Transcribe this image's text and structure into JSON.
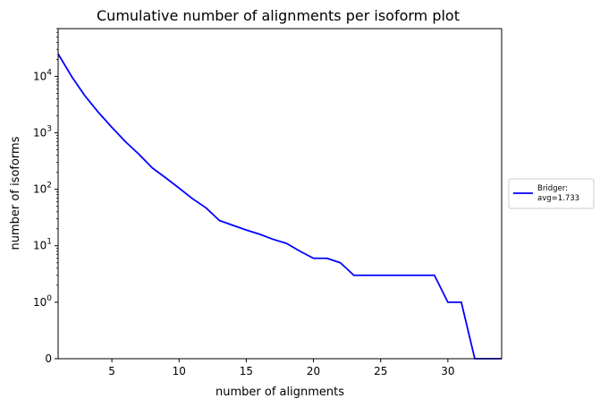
{
  "chart_data": {
    "type": "line",
    "title": "Cumulative number of alignments per isoform plot",
    "xlabel": "number of alignments",
    "ylabel": "number of isoforms",
    "yscale": "symlog",
    "xlim": [
      1,
      34
    ],
    "ylim": [
      0,
      70000
    ],
    "grid": false,
    "legend_position": "outside-right",
    "x_ticks": [
      {
        "value": 5,
        "label": "5"
      },
      {
        "value": 10,
        "label": "10"
      },
      {
        "value": 15,
        "label": "15"
      },
      {
        "value": 20,
        "label": "20"
      },
      {
        "value": 25,
        "label": "25"
      },
      {
        "value": 30,
        "label": "30"
      }
    ],
    "y_ticks": [
      {
        "value": 0,
        "label": "0",
        "base": "0",
        "exp": ""
      },
      {
        "value": 1,
        "label": "10^0",
        "base": "10",
        "exp": "0"
      },
      {
        "value": 10,
        "label": "10^1",
        "base": "10",
        "exp": "1"
      },
      {
        "value": 100,
        "label": "10^2",
        "base": "10",
        "exp": "2"
      },
      {
        "value": 1000,
        "label": "10^3",
        "base": "10",
        "exp": "3"
      },
      {
        "value": 10000,
        "label": "10^4",
        "base": "10",
        "exp": "4"
      }
    ],
    "series": [
      {
        "name_lines": [
          "Bridger:",
          "avg=1.733"
        ],
        "color": "#0000ff",
        "x": [
          1,
          2,
          3,
          4,
          5,
          6,
          7,
          8,
          9,
          10,
          11,
          12,
          13,
          14,
          15,
          16,
          17,
          18,
          19,
          20,
          21,
          22,
          23,
          24,
          25,
          26,
          27,
          28,
          29,
          30,
          31,
          32,
          33,
          34
        ],
        "y": [
          25000,
          10000,
          4500,
          2300,
          1250,
          700,
          420,
          240,
          160,
          105,
          68,
          47,
          28,
          23,
          19,
          16,
          13,
          11,
          8,
          6,
          6,
          5,
          3,
          3,
          3,
          3,
          3,
          3,
          3,
          1,
          1,
          0,
          0,
          0
        ]
      }
    ]
  }
}
